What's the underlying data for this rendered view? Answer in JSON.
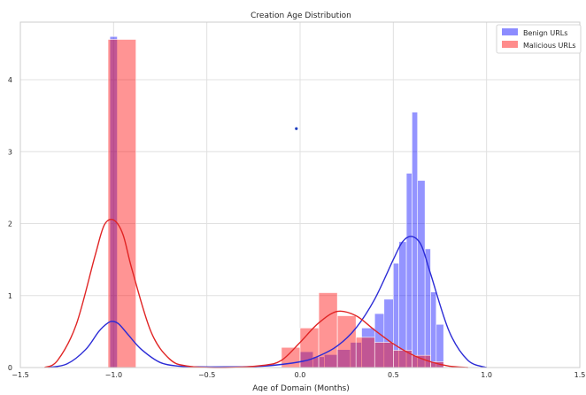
{
  "chart_data": {
    "type": "bar",
    "title": "Creation Age Distribution",
    "xlabel": "Age of Domain (Months)",
    "ylabel": "",
    "xlim": [
      -1.5,
      1.5
    ],
    "ylim": [
      0,
      4.8
    ],
    "x_ticks": [
      "−1.5",
      "−1.0",
      "−0.5",
      "0.0",
      "0.5",
      "1.0",
      "1.5"
    ],
    "x_tick_values": [
      -1.5,
      -1.0,
      -0.5,
      0.0,
      0.5,
      1.0,
      1.5
    ],
    "y_ticks": [
      "0",
      "1",
      "2",
      "3",
      "4"
    ],
    "y_tick_values": [
      0,
      1,
      2,
      3,
      4
    ],
    "grid": true,
    "legend_position": "top-right",
    "series": [
      {
        "name": "Benign URLs",
        "color": "#0000ff",
        "histogram": [
          {
            "x0": -1.02,
            "x1": -0.98,
            "height": 4.6
          },
          {
            "x0": 0.0,
            "x1": 0.07,
            "height": 0.22
          },
          {
            "x0": 0.07,
            "x1": 0.13,
            "height": 0.15
          },
          {
            "x0": 0.13,
            "x1": 0.2,
            "height": 0.18
          },
          {
            "x0": 0.2,
            "x1": 0.27,
            "height": 0.25
          },
          {
            "x0": 0.27,
            "x1": 0.33,
            "height": 0.35
          },
          {
            "x0": 0.33,
            "x1": 0.4,
            "height": 0.55
          },
          {
            "x0": 0.4,
            "x1": 0.45,
            "height": 0.75
          },
          {
            "x0": 0.45,
            "x1": 0.5,
            "height": 0.95
          },
          {
            "x0": 0.5,
            "x1": 0.53,
            "height": 1.45
          },
          {
            "x0": 0.53,
            "x1": 0.57,
            "height": 1.75
          },
          {
            "x0": 0.57,
            "x1": 0.6,
            "height": 2.7
          },
          {
            "x0": 0.6,
            "x1": 0.63,
            "height": 3.55
          },
          {
            "x0": 0.63,
            "x1": 0.67,
            "height": 2.6
          },
          {
            "x0": 0.67,
            "x1": 0.7,
            "height": 1.65
          },
          {
            "x0": 0.7,
            "x1": 0.73,
            "height": 1.05
          },
          {
            "x0": 0.73,
            "x1": 0.77,
            "height": 0.6
          }
        ],
        "kde_x": [
          -1.35,
          -1.25,
          -1.15,
          -1.08,
          -1.03,
          -1.0,
          -0.97,
          -0.92,
          -0.85,
          -0.75,
          -0.65,
          -0.55,
          -0.4,
          -0.2,
          0.0,
          0.1,
          0.2,
          0.3,
          0.4,
          0.5,
          0.55,
          0.6,
          0.65,
          0.7,
          0.8,
          0.9,
          1.0
        ],
        "kde_y": [
          0.0,
          0.05,
          0.25,
          0.5,
          0.62,
          0.64,
          0.6,
          0.45,
          0.25,
          0.07,
          0.02,
          0.01,
          0.01,
          0.02,
          0.08,
          0.16,
          0.3,
          0.55,
          0.95,
          1.5,
          1.75,
          1.82,
          1.7,
          1.3,
          0.5,
          0.1,
          0.0
        ]
      },
      {
        "name": "Malicious URLs",
        "color": "#ff0000",
        "histogram": [
          {
            "x0": -1.03,
            "x1": -0.88,
            "height": 4.56
          },
          {
            "x0": -0.1,
            "x1": 0.0,
            "height": 0.28
          },
          {
            "x0": 0.0,
            "x1": 0.1,
            "height": 0.55
          },
          {
            "x0": 0.1,
            "x1": 0.2,
            "height": 1.04
          },
          {
            "x0": 0.2,
            "x1": 0.3,
            "height": 0.72
          },
          {
            "x0": 0.3,
            "x1": 0.4,
            "height": 0.42
          },
          {
            "x0": 0.4,
            "x1": 0.5,
            "height": 0.35
          },
          {
            "x0": 0.5,
            "x1": 0.6,
            "height": 0.24
          },
          {
            "x0": 0.6,
            "x1": 0.7,
            "height": 0.17
          },
          {
            "x0": 0.7,
            "x1": 0.77,
            "height": 0.08
          }
        ],
        "kde_x": [
          -1.37,
          -1.3,
          -1.2,
          -1.1,
          -1.05,
          -1.0,
          -0.95,
          -0.9,
          -0.8,
          -0.7,
          -0.6,
          -0.4,
          -0.2,
          -0.1,
          0.0,
          0.1,
          0.2,
          0.3,
          0.4,
          0.5,
          0.6,
          0.7,
          0.8,
          0.9
        ],
        "kde_y": [
          0.0,
          0.1,
          0.6,
          1.55,
          1.98,
          2.05,
          1.85,
          1.35,
          0.5,
          0.12,
          0.02,
          0.0,
          0.03,
          0.1,
          0.35,
          0.62,
          0.78,
          0.72,
          0.52,
          0.33,
          0.18,
          0.08,
          0.02,
          0.0
        ]
      }
    ],
    "annotations": [
      {
        "type": "point",
        "x": -0.02,
        "y": 3.32,
        "color": "#1f3fbf"
      }
    ]
  }
}
